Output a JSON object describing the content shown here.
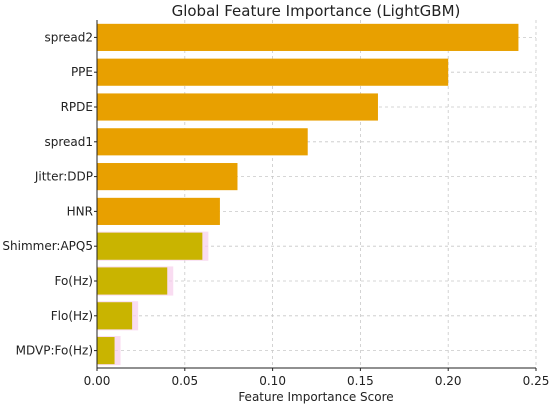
{
  "chart_data": {
    "type": "bar",
    "orientation": "horizontal",
    "title": "Global Feature Importance (LightGBM)",
    "xlabel": "Feature Importance Score",
    "ylabel": "",
    "categories": [
      "spread2",
      "PPE",
      "RPDE",
      "spread1",
      "Jitter:DDP",
      "HNR",
      "Shimmer:APQ5",
      "Fo(Hz)",
      "Flo(Hz)",
      "MDVP:Fo(Hz)"
    ],
    "values": [
      0.24,
      0.2,
      0.16,
      0.12,
      0.08,
      0.07,
      0.06,
      0.04,
      0.02,
      0.01
    ],
    "xlim": [
      0,
      0.25
    ],
    "xticks": [
      0.0,
      0.05,
      0.1,
      0.15,
      0.2,
      0.25
    ],
    "xtick_labels": [
      "0.00",
      "0.05",
      "0.10",
      "0.15",
      "0.20",
      "0.25"
    ],
    "grid": true,
    "colors": {
      "bar": "#E8A000",
      "bar_tint_lower": "#C9B400",
      "shadow": "#F7CDEB"
    }
  }
}
